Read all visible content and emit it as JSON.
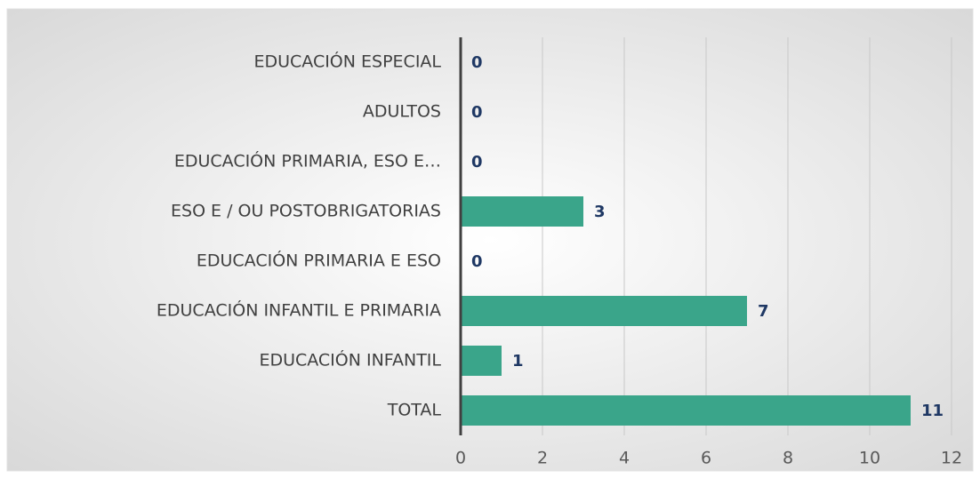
{
  "chart_data": {
    "type": "bar",
    "orientation": "horizontal",
    "categories": [
      "EDUCACIÓN ESPECIAL",
      "ADULTOS",
      "EDUCACIÓN PRIMARIA, ESO E…",
      "ESO E / OU POSTOBRIGATORIAS",
      "EDUCACIÓN PRIMARIA E ESO",
      "EDUCACIÓN INFANTIL E PRIMARIA",
      "EDUCACIÓN INFANTIL",
      "TOTAL"
    ],
    "values": [
      0,
      0,
      0,
      3,
      0,
      7,
      1,
      11
    ],
    "color": "#3aa58a",
    "xlim": [
      0,
      12
    ],
    "xticks": [
      0,
      2,
      4,
      6,
      8,
      10,
      12
    ],
    "grid": true
  }
}
